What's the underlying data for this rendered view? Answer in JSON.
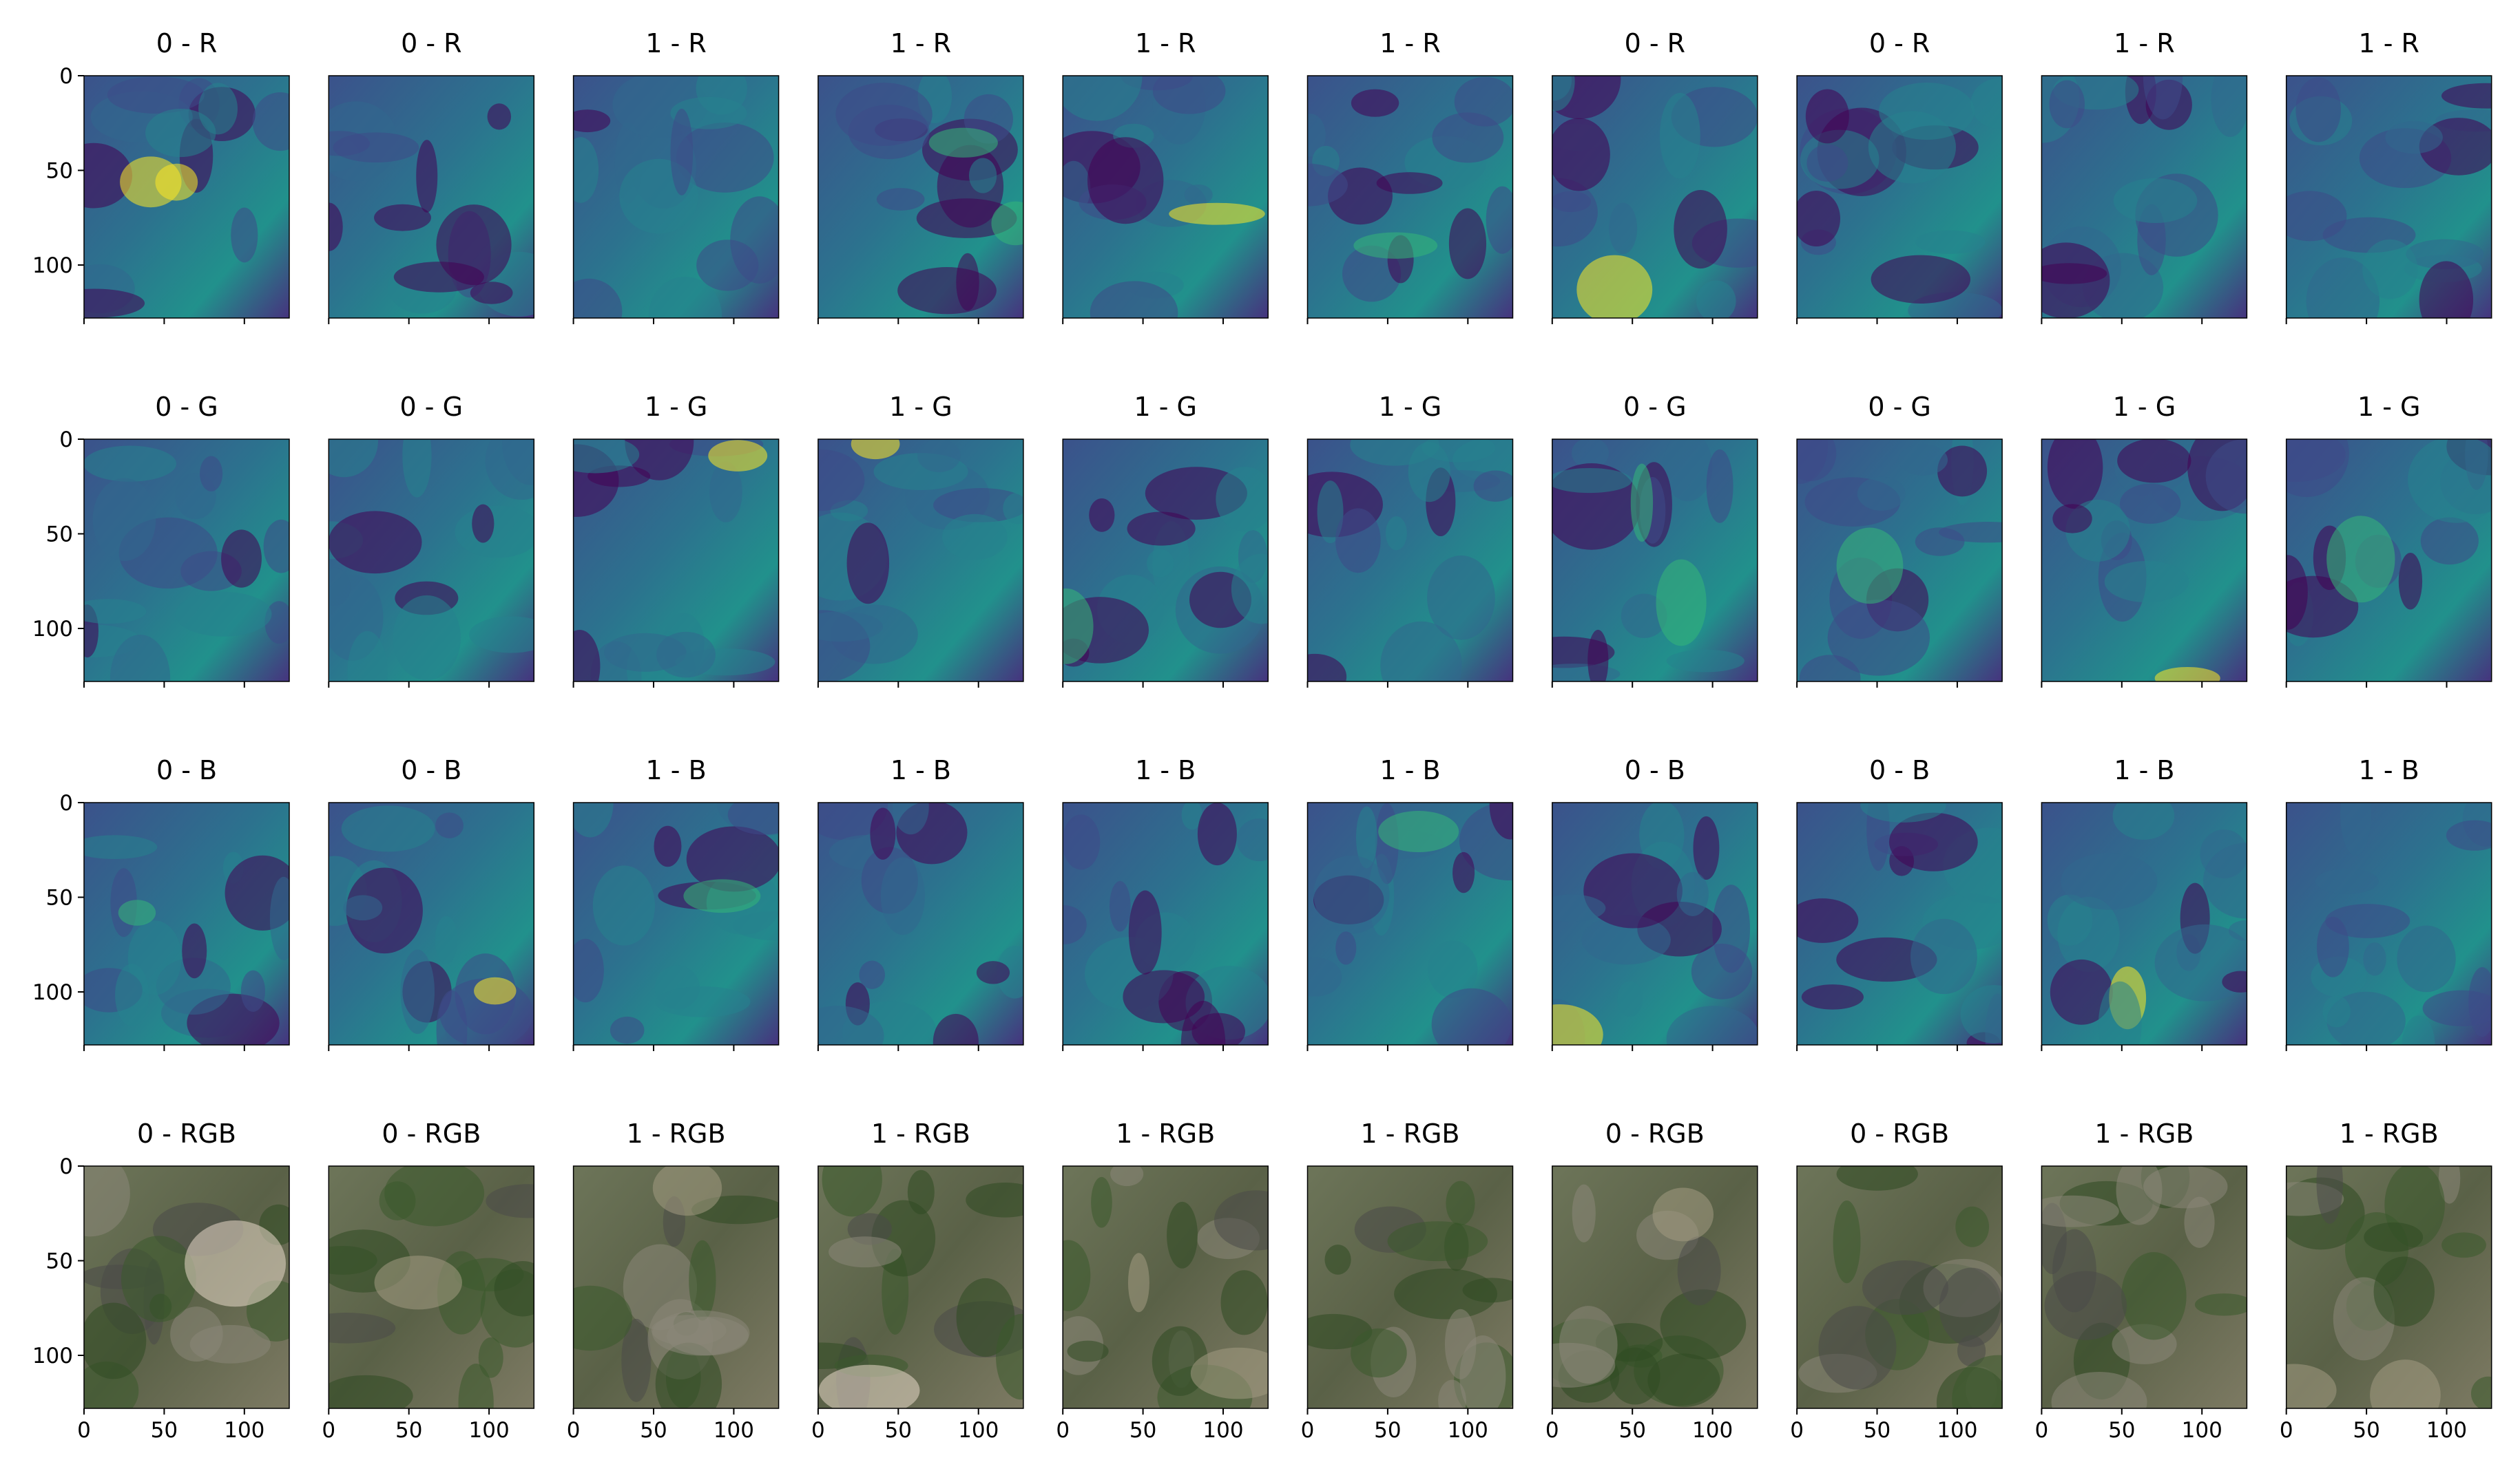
{
  "chart_data": [
    {
      "type": "image",
      "title": "0 - R",
      "xlim": [
        0,
        128
      ],
      "ylim": [
        128,
        0
      ],
      "xticks": [
        0,
        50,
        100
      ],
      "yticks": [
        0,
        50,
        100
      ]
    },
    {
      "type": "image",
      "title": "0 - R",
      "xlim": [
        0,
        128
      ],
      "ylim": [
        128,
        0
      ],
      "xticks": [
        0,
        50,
        100
      ]
    },
    {
      "type": "image",
      "title": "1 - R",
      "xlim": [
        0,
        128
      ],
      "ylim": [
        128,
        0
      ],
      "xticks": [
        0,
        50,
        100
      ]
    },
    {
      "type": "image",
      "title": "1 - R",
      "xlim": [
        0,
        128
      ],
      "ylim": [
        128,
        0
      ],
      "xticks": [
        0,
        50,
        100
      ]
    },
    {
      "type": "image",
      "title": "1 - R",
      "xlim": [
        0,
        128
      ],
      "ylim": [
        128,
        0
      ],
      "xticks": [
        0,
        50,
        100
      ]
    },
    {
      "type": "image",
      "title": "1 - R",
      "xlim": [
        0,
        128
      ],
      "ylim": [
        128,
        0
      ],
      "xticks": [
        0,
        50,
        100
      ]
    },
    {
      "type": "image",
      "title": "0 - R",
      "xlim": [
        0,
        128
      ],
      "ylim": [
        128,
        0
      ],
      "xticks": [
        0,
        50,
        100
      ]
    },
    {
      "type": "image",
      "title": "0 - R",
      "xlim": [
        0,
        128
      ],
      "ylim": [
        128,
        0
      ],
      "xticks": [
        0,
        50,
        100
      ]
    },
    {
      "type": "image",
      "title": "1 - R",
      "xlim": [
        0,
        128
      ],
      "ylim": [
        128,
        0
      ],
      "xticks": [
        0,
        50,
        100
      ]
    },
    {
      "type": "image",
      "title": "1 - R",
      "xlim": [
        0,
        128
      ],
      "ylim": [
        128,
        0
      ],
      "xticks": [
        0,
        50,
        100
      ]
    },
    {
      "type": "image",
      "title": "0 - G",
      "xlim": [
        0,
        128
      ],
      "ylim": [
        128,
        0
      ],
      "xticks": [
        0,
        50,
        100
      ],
      "yticks": [
        0,
        50,
        100
      ]
    },
    {
      "type": "image",
      "title": "0 - G",
      "xlim": [
        0,
        128
      ],
      "ylim": [
        128,
        0
      ],
      "xticks": [
        0,
        50,
        100
      ]
    },
    {
      "type": "image",
      "title": "1 - G",
      "xlim": [
        0,
        128
      ],
      "ylim": [
        128,
        0
      ],
      "xticks": [
        0,
        50,
        100
      ]
    },
    {
      "type": "image",
      "title": "1 - G",
      "xlim": [
        0,
        128
      ],
      "ylim": [
        128,
        0
      ],
      "xticks": [
        0,
        50,
        100
      ]
    },
    {
      "type": "image",
      "title": "1 - G",
      "xlim": [
        0,
        128
      ],
      "ylim": [
        128,
        0
      ],
      "xticks": [
        0,
        50,
        100
      ]
    },
    {
      "type": "image",
      "title": "1 - G",
      "xlim": [
        0,
        128
      ],
      "ylim": [
        128,
        0
      ],
      "xticks": [
        0,
        50,
        100
      ]
    },
    {
      "type": "image",
      "title": "0 - G",
      "xlim": [
        0,
        128
      ],
      "ylim": [
        128,
        0
      ],
      "xticks": [
        0,
        50,
        100
      ]
    },
    {
      "type": "image",
      "title": "0 - G",
      "xlim": [
        0,
        128
      ],
      "ylim": [
        128,
        0
      ],
      "xticks": [
        0,
        50,
        100
      ]
    },
    {
      "type": "image",
      "title": "1 - G",
      "xlim": [
        0,
        128
      ],
      "ylim": [
        128,
        0
      ],
      "xticks": [
        0,
        50,
        100
      ]
    },
    {
      "type": "image",
      "title": "1 - G",
      "xlim": [
        0,
        128
      ],
      "ylim": [
        128,
        0
      ],
      "xticks": [
        0,
        50,
        100
      ]
    },
    {
      "type": "image",
      "title": "0 - B",
      "xlim": [
        0,
        128
      ],
      "ylim": [
        128,
        0
      ],
      "xticks": [
        0,
        50,
        100
      ],
      "yticks": [
        0,
        50,
        100
      ]
    },
    {
      "type": "image",
      "title": "0 - B",
      "xlim": [
        0,
        128
      ],
      "ylim": [
        128,
        0
      ],
      "xticks": [
        0,
        50,
        100
      ]
    },
    {
      "type": "image",
      "title": "1 - B",
      "xlim": [
        0,
        128
      ],
      "ylim": [
        128,
        0
      ],
      "xticks": [
        0,
        50,
        100
      ]
    },
    {
      "type": "image",
      "title": "1 - B",
      "xlim": [
        0,
        128
      ],
      "ylim": [
        128,
        0
      ],
      "xticks": [
        0,
        50,
        100
      ]
    },
    {
      "type": "image",
      "title": "1 - B",
      "xlim": [
        0,
        128
      ],
      "ylim": [
        128,
        0
      ],
      "xticks": [
        0,
        50,
        100
      ]
    },
    {
      "type": "image",
      "title": "1 - B",
      "xlim": [
        0,
        128
      ],
      "ylim": [
        128,
        0
      ],
      "xticks": [
        0,
        50,
        100
      ]
    },
    {
      "type": "image",
      "title": "0 - B",
      "xlim": [
        0,
        128
      ],
      "ylim": [
        128,
        0
      ],
      "xticks": [
        0,
        50,
        100
      ]
    },
    {
      "type": "image",
      "title": "0 - B",
      "xlim": [
        0,
        128
      ],
      "ylim": [
        128,
        0
      ],
      "xticks": [
        0,
        50,
        100
      ]
    },
    {
      "type": "image",
      "title": "1 - B",
      "xlim": [
        0,
        128
      ],
      "ylim": [
        128,
        0
      ],
      "xticks": [
        0,
        50,
        100
      ]
    },
    {
      "type": "image",
      "title": "1 - B",
      "xlim": [
        0,
        128
      ],
      "ylim": [
        128,
        0
      ],
      "xticks": [
        0,
        50,
        100
      ]
    },
    {
      "type": "image",
      "title": "0 - RGB",
      "xlim": [
        0,
        128
      ],
      "ylim": [
        128,
        0
      ],
      "xticks": [
        0,
        50,
        100
      ],
      "yticks": [
        0,
        50,
        100
      ]
    },
    {
      "type": "image",
      "title": "0 - RGB",
      "xlim": [
        0,
        128
      ],
      "ylim": [
        128,
        0
      ],
      "xticks": [
        0,
        50,
        100
      ]
    },
    {
      "type": "image",
      "title": "1 - RGB",
      "xlim": [
        0,
        128
      ],
      "ylim": [
        128,
        0
      ],
      "xticks": [
        0,
        50,
        100
      ]
    },
    {
      "type": "image",
      "title": "1 - RGB",
      "xlim": [
        0,
        128
      ],
      "ylim": [
        128,
        0
      ],
      "xticks": [
        0,
        50,
        100
      ]
    },
    {
      "type": "image",
      "title": "1 - RGB",
      "xlim": [
        0,
        128
      ],
      "ylim": [
        128,
        0
      ],
      "xticks": [
        0,
        50,
        100
      ]
    },
    {
      "type": "image",
      "title": "1 - RGB",
      "xlim": [
        0,
        128
      ],
      "ylim": [
        128,
        0
      ],
      "xticks": [
        0,
        50,
        100
      ]
    },
    {
      "type": "image",
      "title": "0 - RGB",
      "xlim": [
        0,
        128
      ],
      "ylim": [
        128,
        0
      ],
      "xticks": [
        0,
        50,
        100
      ]
    },
    {
      "type": "image",
      "title": "0 - RGB",
      "xlim": [
        0,
        128
      ],
      "ylim": [
        128,
        0
      ],
      "xticks": [
        0,
        50,
        100
      ]
    },
    {
      "type": "image",
      "title": "1 - RGB",
      "xlim": [
        0,
        128
      ],
      "ylim": [
        128,
        0
      ],
      "xticks": [
        0,
        50,
        100
      ]
    },
    {
      "type": "image",
      "title": "1 - RGB",
      "xlim": [
        0,
        128
      ],
      "ylim": [
        128,
        0
      ],
      "xticks": [
        0,
        50,
        100
      ]
    }
  ]
}
